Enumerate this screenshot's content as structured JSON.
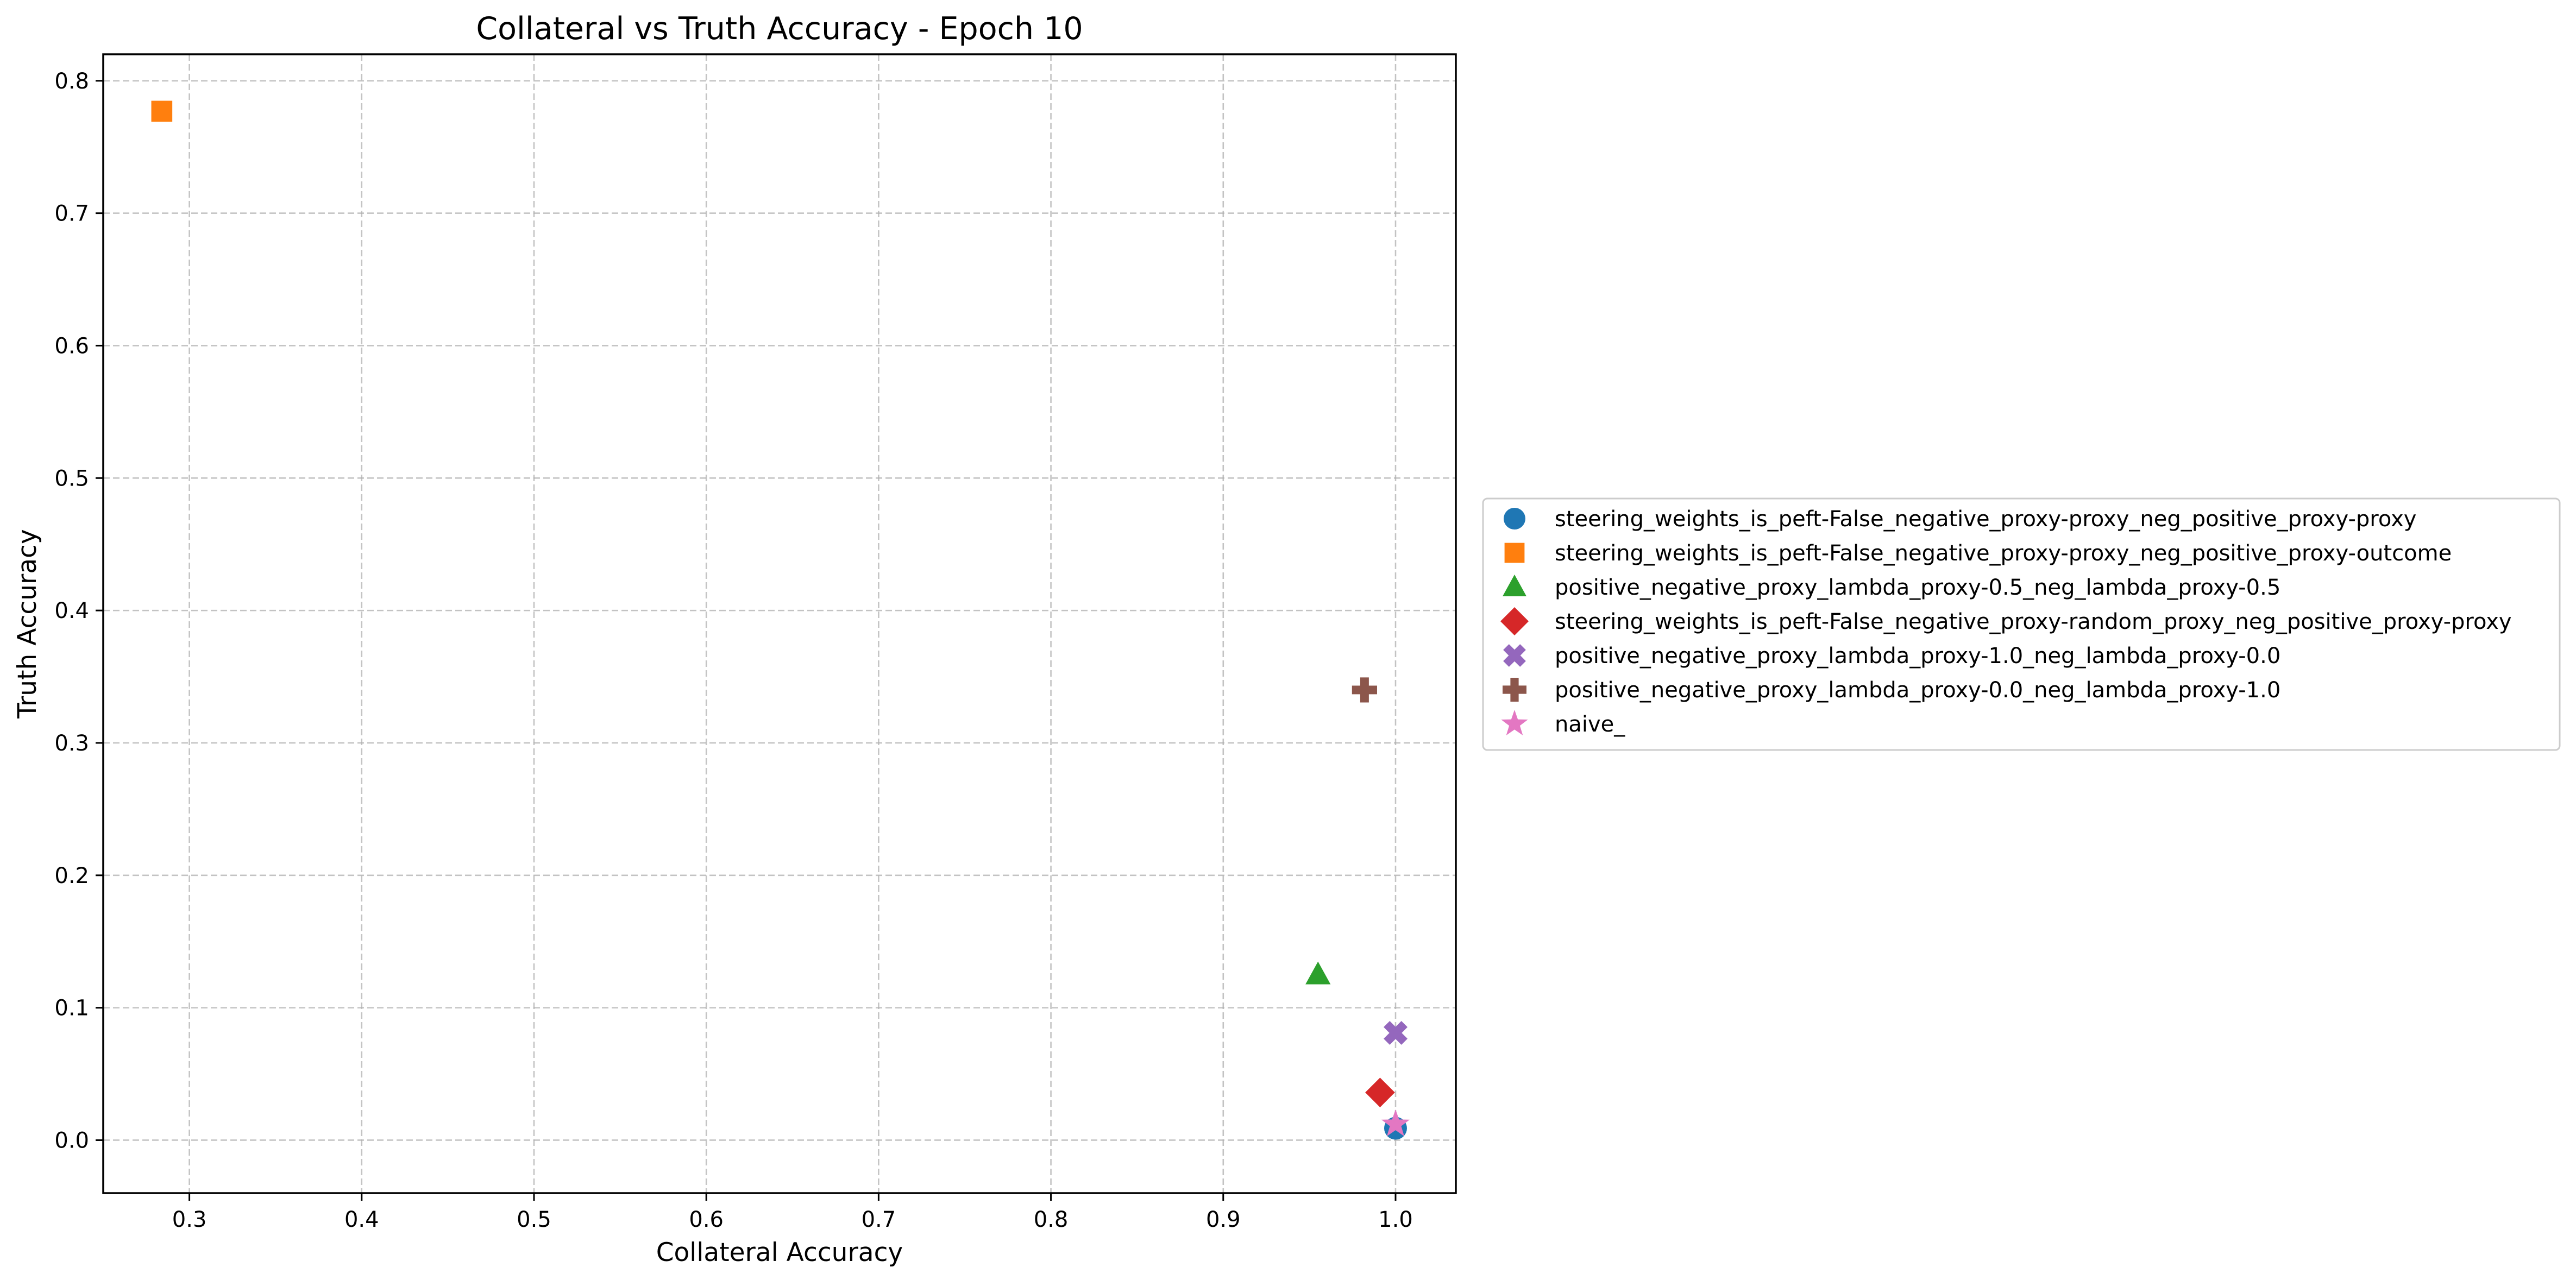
{
  "chart_data": {
    "type": "scatter",
    "title": "Collateral vs Truth Accuracy - Epoch 10",
    "xlabel": "Collateral Accuracy",
    "ylabel": "Truth Accuracy",
    "xlim": [
      0.25,
      1.035
    ],
    "ylim": [
      -0.04,
      0.82
    ],
    "xticks": [
      "0.3",
      "0.4",
      "0.5",
      "0.6",
      "0.7",
      "0.8",
      "0.9",
      "1.0"
    ],
    "yticks": [
      "0.0",
      "0.1",
      "0.2",
      "0.3",
      "0.4",
      "0.5",
      "0.6",
      "0.7",
      "0.8"
    ],
    "grid": true,
    "legend_position": "outside-right",
    "series": [
      {
        "name": "steering_weights_is_peft-False_negative_proxy-proxy_neg_positive_proxy-proxy",
        "marker": "circle",
        "color": "#1f77b4",
        "x": 1.0,
        "y": 0.009
      },
      {
        "name": "steering_weights_is_peft-False_negative_proxy-proxy_neg_positive_proxy-outcome",
        "marker": "square",
        "color": "#ff7f0e",
        "x": 0.284,
        "y": 0.777
      },
      {
        "name": "positive_negative_proxy_lambda_proxy-0.5_neg_lambda_proxy-0.5",
        "marker": "triangle",
        "color": "#2ca02c",
        "x": 0.955,
        "y": 0.125
      },
      {
        "name": "steering_weights_is_peft-False_negative_proxy-random_proxy_neg_positive_proxy-proxy",
        "marker": "diamond",
        "color": "#d62728",
        "x": 0.991,
        "y": 0.036
      },
      {
        "name": "positive_negative_proxy_lambda_proxy-1.0_neg_lambda_proxy-0.0",
        "marker": "x-filled",
        "color": "#9467bd",
        "x": 1.0,
        "y": 0.081
      },
      {
        "name": "positive_negative_proxy_lambda_proxy-0.0_neg_lambda_proxy-1.0",
        "marker": "plus-filled",
        "color": "#8c564b",
        "x": 0.982,
        "y": 0.34
      },
      {
        "name": "naive_",
        "marker": "star",
        "color": "#e377c2",
        "x": 1.0,
        "y": 0.012
      }
    ]
  }
}
